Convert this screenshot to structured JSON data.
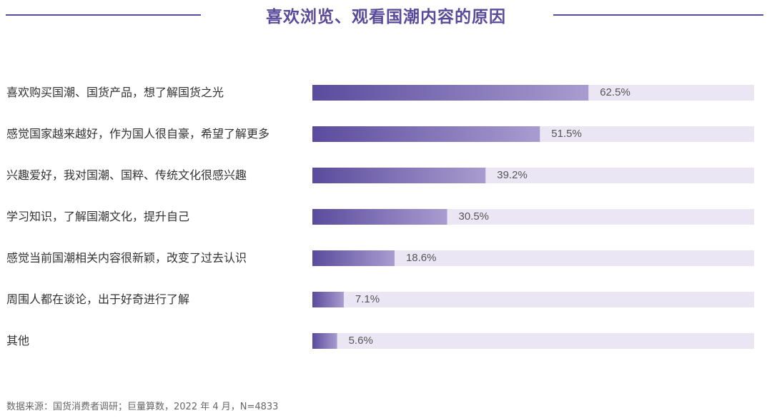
{
  "title": "喜欢浏览、观看国潮内容的原因",
  "colors": {
    "accent": "#5a4a9a",
    "bar_start": "#5b4b9e",
    "bar_end": "#a89ccf",
    "track": "#eae6f4"
  },
  "source": "数据来源：国货消费者调研；巨量算数，2022 年 4 月，N=4833",
  "chart_data": {
    "type": "bar",
    "orientation": "horizontal",
    "title": "喜欢浏览、观看国潮内容的原因",
    "unit": "%",
    "xlim": [
      0,
      100
    ],
    "categories": [
      "喜欢购买国潮、国货产品，想了解国货之光",
      "感觉国家越来越好，作为国人很自豪，希望了解更多",
      "兴趣爱好，我对国潮、国粹、传统文化很感兴趣",
      "学习知识，了解国潮文化，提升自己",
      "感觉当前国潮相关内容很新颖，改变了过去认识",
      "周围人都在谈论，出于好奇进行了解",
      "其他"
    ],
    "values": [
      62.5,
      51.5,
      39.2,
      30.5,
      18.6,
      7.1,
      5.6
    ],
    "value_labels": [
      "62.5%",
      "51.5%",
      "39.2%",
      "30.5%",
      "18.6%",
      "7.1%",
      "5.6%"
    ]
  }
}
